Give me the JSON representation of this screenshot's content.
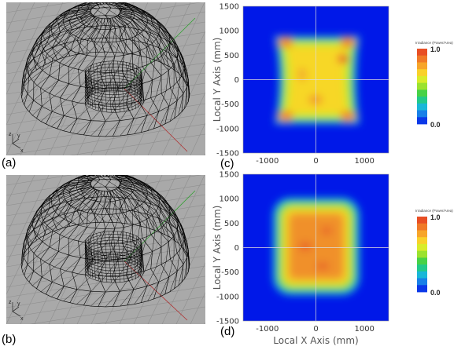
{
  "panels": {
    "a": {
      "label": "(a)"
    },
    "b": {
      "label": "(b)"
    },
    "c": {
      "label": "(c)"
    },
    "d": {
      "label": "(d)"
    }
  },
  "viewport_axes": {
    "z": "z",
    "y": "y",
    "x": "x"
  },
  "colors": {
    "viewport_bg": "#a9a9a9",
    "grid": "#8e8e8e",
    "mesh": "#000000",
    "map_bg": "#0018e8",
    "axis_x_red": "#b03030",
    "axis_y_green": "#30a030"
  },
  "chart_data": [
    {
      "type": "heatmap",
      "panel": "c",
      "xlabel": "",
      "ylabel": "Local Y Axis (mm)",
      "xlim": [
        -1500,
        1500
      ],
      "ylim": [
        -1500,
        1500
      ],
      "xticks": [
        "-1000",
        "0",
        "1000"
      ],
      "yticks": [
        "1500",
        "1000",
        "500",
        "0",
        "-500",
        "-1000",
        "-1500"
      ],
      "colorbar": {
        "title": "Irradiance (Power/Area)",
        "max_label": "1.0",
        "min_label": "0.0"
      },
      "pattern": "waisted square, bright corners"
    },
    {
      "type": "heatmap",
      "panel": "d",
      "xlabel": "Local X Axis (mm)",
      "ylabel": "Local Y Axis (mm)",
      "xlim": [
        -1500,
        1500
      ],
      "ylim": [
        -1500,
        1500
      ],
      "xticks": [
        "-1000",
        "0",
        "1000"
      ],
      "yticks": [
        "1500",
        "1000",
        "500",
        "0",
        "-500",
        "-1000",
        "-1500"
      ],
      "colorbar": {
        "title": "Irradiance (Power/Area)",
        "max_label": "1.0",
        "min_label": "0.0"
      },
      "pattern": "uniform square"
    }
  ]
}
